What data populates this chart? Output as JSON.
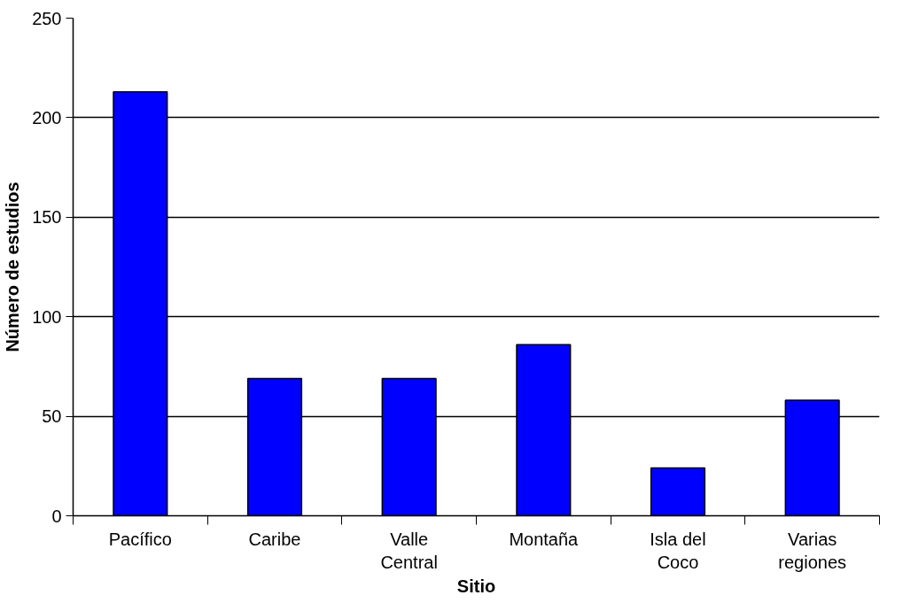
{
  "chart_data": {
    "type": "bar",
    "xlabel": "Sitio",
    "ylabel": "Número de estudios",
    "categories": [
      "Pacífico",
      "Caribe",
      "Valle\nCentral",
      "Montaña",
      "Isla del\nCoco",
      "Varias\nregiones"
    ],
    "values": [
      213,
      69,
      69,
      86,
      24,
      58
    ],
    "color": "#0000ff",
    "ylim": [
      0,
      250
    ],
    "yticks": [
      0,
      50,
      100,
      150,
      200,
      250
    ],
    "grid": "y"
  }
}
